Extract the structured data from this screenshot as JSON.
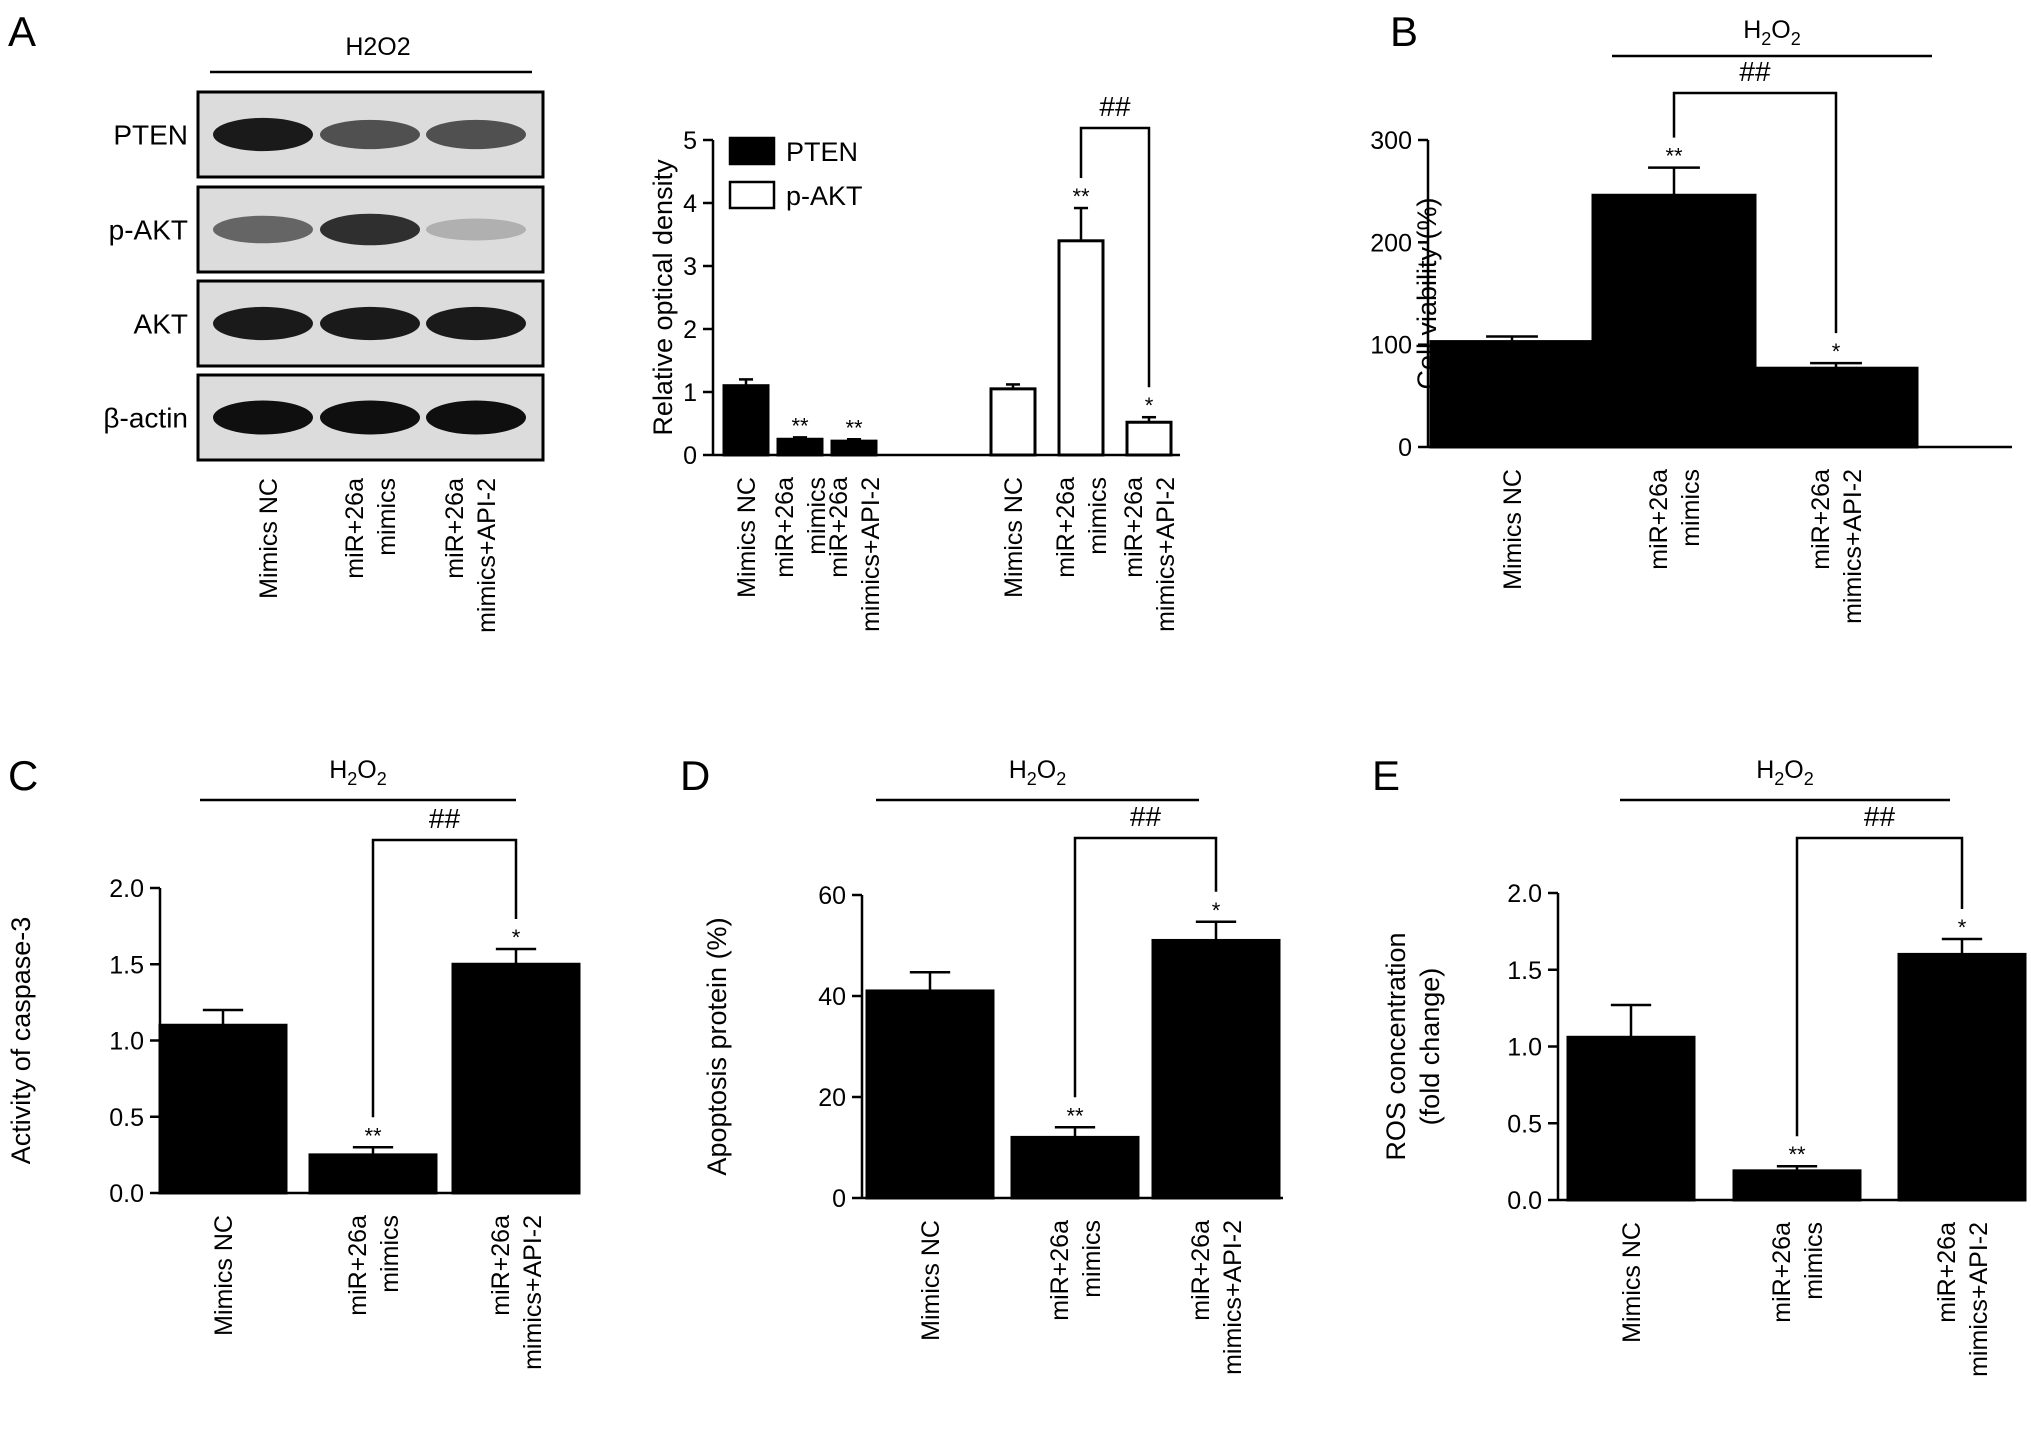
{
  "figure": {
    "panels": [
      "A",
      "B",
      "C",
      "D",
      "E"
    ]
  },
  "western_blot": {
    "treatment": "H2O2",
    "rows": [
      "PTEN",
      "p-AKT",
      "AKT",
      "β-actin"
    ],
    "lanes": [
      "Mimics NC",
      "miR+26a mimics",
      "miR+26a mimics+API-2"
    ],
    "band_intensity": [
      [
        0.95,
        0.7,
        0.7
      ],
      [
        0.6,
        0.85,
        0.25
      ],
      [
        0.95,
        0.95,
        0.95
      ],
      [
        1.0,
        1.0,
        1.0
      ]
    ]
  },
  "chart_data": [
    {
      "panel": "A",
      "type": "bar",
      "categories": [
        "Mimics NC",
        "miR+26a mimics",
        "miR+26a mimics+API-2"
      ],
      "series": [
        {
          "name": "PTEN",
          "values": [
            1.1,
            0.25,
            0.22
          ],
          "errors": [
            0.1,
            0.03,
            0.03
          ],
          "fill": "#000000",
          "stars": [
            "",
            "**",
            "**"
          ]
        },
        {
          "name": "p-AKT",
          "values": [
            1.05,
            3.4,
            0.52
          ],
          "errors": [
            0.07,
            0.52,
            0.08
          ],
          "fill": "#ffffff",
          "stars": [
            "",
            "**",
            "*"
          ]
        }
      ],
      "ylabel": "Relative optical density",
      "ylim": [
        0,
        5
      ],
      "yticks": [
        "0",
        "1",
        "2",
        "3",
        "4",
        "5"
      ],
      "bracket": {
        "label": "##",
        "between": [
          1,
          2
        ]
      },
      "legend": "top-left"
    },
    {
      "panel": "B",
      "type": "bar",
      "treatment": "H2O2",
      "categories": [
        "Mimics NC",
        "miR+26a mimics",
        "miR+26a mimics+API-2"
      ],
      "values": [
        103,
        246,
        77
      ],
      "errors": [
        5,
        27,
        5
      ],
      "stars": [
        "",
        "**",
        "*"
      ],
      "ylabel": "Cell viability (%)",
      "ylim": [
        0,
        300
      ],
      "yticks": [
        "0",
        "100",
        "200",
        "300"
      ],
      "bracket": {
        "label": "##",
        "between": [
          1,
          2
        ]
      }
    },
    {
      "panel": "C",
      "type": "bar",
      "treatment": "H2O2",
      "categories": [
        "Mimics NC",
        "miR+26a mimics",
        "miR+26a mimics+API-2"
      ],
      "values": [
        1.1,
        0.25,
        1.5
      ],
      "errors": [
        0.1,
        0.05,
        0.1
      ],
      "stars": [
        "",
        "**",
        "*"
      ],
      "ylabel": "Activity of caspase-3",
      "ylim": [
        0,
        2.0
      ],
      "yticks": [
        "0.0",
        "0.5",
        "1.0",
        "1.5",
        "2.0"
      ],
      "bracket": {
        "label": "##",
        "between": [
          1,
          2
        ]
      }
    },
    {
      "panel": "D",
      "type": "bar",
      "treatment": "H2O2",
      "categories": [
        "Mimics NC",
        "miR+26a mimics",
        "miR+26a mimics+API-2"
      ],
      "values": [
        41,
        12,
        51
      ],
      "errors": [
        3.7,
        2,
        3.7
      ],
      "stars": [
        "",
        "**",
        "*"
      ],
      "ylabel": "Apoptosis protein (%)",
      "ylim": [
        0,
        60
      ],
      "yticks": [
        "0",
        "20",
        "40",
        "60"
      ],
      "bracket": {
        "label": "##",
        "between": [
          1,
          2
        ]
      }
    },
    {
      "panel": "E",
      "type": "bar",
      "treatment": "H2O2",
      "categories": [
        "Mimics NC",
        "miR+26a mimics",
        "miR+26a mimics+API-2"
      ],
      "values": [
        1.06,
        0.19,
        1.6
      ],
      "errors": [
        0.21,
        0.03,
        0.1
      ],
      "stars": [
        "",
        "**",
        "*"
      ],
      "ylabel": "ROS concentration (fold change)",
      "ylabel_lines": [
        "ROS concentration",
        "(fold change)"
      ],
      "ylim": [
        0,
        2.0
      ],
      "yticks": [
        "0.0",
        "0.5",
        "1.0",
        "1.5",
        "2.0"
      ],
      "bracket": {
        "label": "##",
        "between": [
          1,
          2
        ]
      }
    }
  ]
}
